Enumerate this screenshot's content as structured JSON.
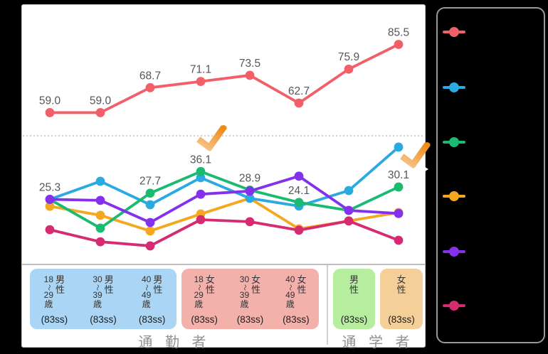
{
  "colors": {
    "page_bg": "#000000",
    "card_bg": "#ffffff",
    "card_border": "#c8c8c8",
    "axis_line": "#a9a9a9",
    "gridline": "#a0a0a0",
    "divider": "#bdbdbd",
    "data_label": "#55565a",
    "group_label": "#8f9093",
    "cell_text": "#333333",
    "legend_border": "#989898",
    "checkmark_gradient": [
      "#f8c58d",
      "#ee8b17"
    ]
  },
  "chart_data": {
    "type": "line",
    "title": "",
    "xlabel": "",
    "ylabel": "",
    "ylim": [
      0,
      100
    ],
    "gridlines": [
      50
    ],
    "grid_style": "dotted",
    "legend_position": "right-panel",
    "categories": [
      {
        "group": "通勤者",
        "gender": "男性",
        "age": "18〜29歳",
        "sample_size": "(83ss)"
      },
      {
        "group": "通勤者",
        "gender": "男性",
        "age": "30〜39歳",
        "sample_size": "(83ss)"
      },
      {
        "group": "通勤者",
        "gender": "男性",
        "age": "40〜49歳",
        "sample_size": "(83ss)"
      },
      {
        "group": "通勤者",
        "gender": "女性",
        "age": "18〜29歳",
        "sample_size": "(83ss)"
      },
      {
        "group": "通勤者",
        "gender": "女性",
        "age": "30〜39歳",
        "sample_size": "(83ss)"
      },
      {
        "group": "通勤者",
        "gender": "女性",
        "age": "40〜49歳",
        "sample_size": "(83ss)"
      },
      {
        "group": "通学者",
        "gender": "男性",
        "age": "",
        "sample_size": "(83ss)"
      },
      {
        "group": "通学者",
        "gender": "女性",
        "age": "",
        "sample_size": "(83ss)"
      }
    ],
    "group_labels": [
      {
        "text": "通 勤 者"
      },
      {
        "text": "通 学 者"
      }
    ],
    "series": [
      {
        "id": "series-red",
        "color": "#f15f68",
        "values": [
          59.0,
          59.0,
          68.7,
          71.1,
          73.5,
          62.7,
          75.9,
          85.5
        ],
        "point_labels": [
          "59.0",
          "59.0",
          "68.7",
          "71.1",
          "73.5",
          "62.7",
          "75.9",
          "85.5"
        ]
      },
      {
        "id": "series-blue",
        "color": "#2baae1",
        "values": [
          25.3,
          32.3,
          23.2,
          33.7,
          25.7,
          22.7,
          28.7,
          45.6
        ],
        "point_labels": [
          null,
          null,
          null,
          null,
          null,
          null,
          null,
          null
        ]
      },
      {
        "id": "series-green",
        "color": "#1aba71",
        "values": [
          25.3,
          14.1,
          27.7,
          36.1,
          28.9,
          24.1,
          21.0,
          30.1
        ],
        "point_labels": [
          "25.3",
          null,
          "27.7",
          "36.1",
          "28.9",
          "24.1",
          null,
          "30.1"
        ]
      },
      {
        "id": "series-orange",
        "color": "#f4a71f",
        "values": [
          22.6,
          19.1,
          13.0,
          19.6,
          25.7,
          13.8,
          16.9,
          20.2
        ],
        "point_labels": [
          null,
          null,
          null,
          null,
          null,
          null,
          null,
          null
        ]
      },
      {
        "id": "series-purple",
        "color": "#8430ec",
        "values": [
          25.3,
          24.9,
          16.3,
          27.3,
          28.5,
          34.3,
          21.0,
          19.8
        ],
        "point_labels": [
          null,
          null,
          null,
          null,
          null,
          null,
          null,
          null
        ]
      },
      {
        "id": "series-pink",
        "color": "#d62a71",
        "values": [
          13.5,
          8.8,
          7.2,
          17.4,
          16.6,
          13.3,
          16.9,
          9.4
        ],
        "point_labels": [
          null,
          null,
          null,
          null,
          null,
          null,
          null,
          null
        ]
      }
    ]
  },
  "category_boxes": [
    {
      "color": "#aad5f4",
      "category_indexes": [
        0,
        1,
        2
      ]
    },
    {
      "color": "#f4b0ab",
      "category_indexes": [
        3,
        4,
        5
      ]
    },
    {
      "color": "#b6ed9f",
      "category_indexes": [
        6
      ]
    },
    {
      "color": "#f4cf97",
      "category_indexes": [
        7
      ]
    }
  ],
  "legend": {
    "items": [
      {
        "name": "legend-marker-red",
        "color": "#f15f68"
      },
      {
        "name": "legend-marker-blue",
        "color": "#2baae1"
      },
      {
        "name": "legend-marker-green",
        "color": "#1aba71"
      },
      {
        "name": "legend-marker-orange",
        "color": "#f4a71f"
      },
      {
        "name": "legend-marker-purple",
        "color": "#8430ec"
      },
      {
        "name": "legend-marker-pink",
        "color": "#d62a71"
      }
    ]
  },
  "annotations": {
    "checkmarks": [
      {
        "near_label": "36.1"
      },
      {
        "near_label": "30.1"
      }
    ]
  }
}
